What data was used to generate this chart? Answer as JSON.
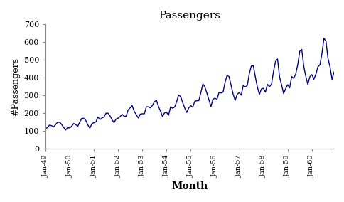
{
  "title": "Passengers",
  "xlabel": "Month",
  "ylabel": "#Passengers",
  "line_color": "#000080",
  "line_width": 1.0,
  "background_color": "#ffffff",
  "ylim": [
    0,
    700
  ],
  "yticks": [
    0,
    100,
    200,
    300,
    400,
    500,
    600,
    700
  ],
  "passengers": [
    112,
    118,
    132,
    129,
    121,
    135,
    148,
    148,
    136,
    119,
    104,
    118,
    115,
    126,
    141,
    135,
    125,
    149,
    170,
    170,
    158,
    133,
    114,
    140,
    145,
    150,
    178,
    163,
    172,
    178,
    199,
    199,
    184,
    162,
    146,
    166,
    171,
    180,
    193,
    181,
    183,
    218,
    230,
    242,
    209,
    191,
    172,
    194,
    196,
    196,
    236,
    235,
    229,
    243,
    264,
    272,
    237,
    211,
    180,
    201,
    204,
    188,
    235,
    227,
    234,
    264,
    302,
    293,
    259,
    229,
    203,
    229,
    242,
    233,
    267,
    269,
    270,
    315,
    364,
    347,
    312,
    274,
    237,
    278,
    284,
    277,
    317,
    313,
    318,
    374,
    413,
    405,
    355,
    306,
    271,
    306,
    315,
    301,
    356,
    348,
    355,
    422,
    465,
    467,
    404,
    347,
    305,
    336,
    340,
    318,
    362,
    348,
    363,
    435,
    491,
    505,
    404,
    359,
    310,
    337,
    360,
    342,
    406,
    396,
    420,
    472,
    548,
    559,
    463,
    407,
    362,
    405,
    417,
    391,
    419,
    461,
    472,
    535,
    622,
    606,
    508,
    461,
    390,
    432
  ],
  "x_tick_positions": [
    0,
    12,
    24,
    36,
    48,
    60,
    72,
    84,
    96,
    108,
    120,
    132
  ],
  "x_tick_labels": [
    "Jan-49",
    "Jan-50",
    "Jan-51",
    "Jan-52",
    "Jan-53",
    "Jan-54",
    "Jan-55",
    "Jan-56",
    "Jan-57",
    "Jan-58",
    "Jan-59",
    "Jan-60"
  ]
}
